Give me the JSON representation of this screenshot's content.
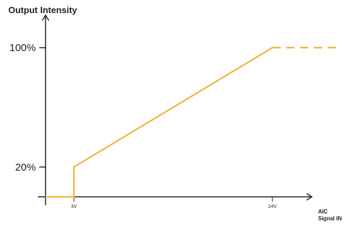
{
  "chart_data": {
    "type": "line",
    "title": "",
    "ylabel": "Output Intensity",
    "xlabel_line1": "AIC",
    "xlabel_line2": "Signal IN",
    "x_ticks": [
      {
        "value": 3,
        "label": "3V"
      },
      {
        "value": 24,
        "label": "24V"
      }
    ],
    "y_ticks": [
      {
        "value": 20,
        "label": "20%"
      },
      {
        "value": 100,
        "label": "100%"
      }
    ],
    "xlim": [
      0,
      35
    ],
    "ylim": [
      0,
      120
    ],
    "grid": false,
    "series": [
      {
        "color": "#f5b335",
        "points": [
          [
            0,
            0
          ],
          [
            3,
            0
          ],
          [
            3,
            20
          ],
          [
            24,
            100
          ]
        ],
        "extension": {
          "style": "dashed",
          "points": [
            [
              24,
              100
            ],
            [
              31,
              100
            ]
          ]
        }
      }
    ]
  }
}
